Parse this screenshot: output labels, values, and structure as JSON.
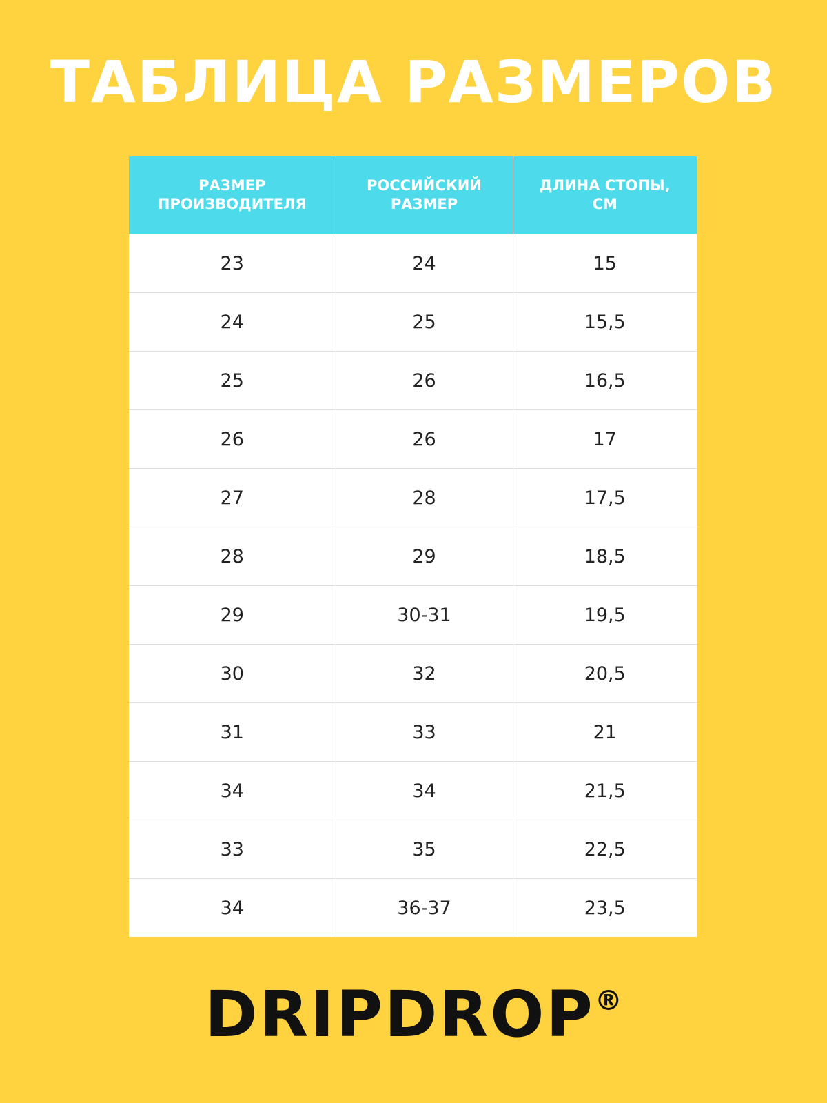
{
  "header": {
    "title": "ТАБЛИЦА РАЗМЕРОВ"
  },
  "table": {
    "columns": [
      "РАЗМЕР ПРОИЗВОДИТЕЛЯ",
      "РОССИЙСКИЙ РАЗМЕР",
      "ДЛИНА СТОПЫ, СМ"
    ],
    "rows": [
      [
        "23",
        "24",
        "15"
      ],
      [
        "24",
        "25",
        "15,5"
      ],
      [
        "25",
        "26",
        "16,5"
      ],
      [
        "26",
        "26",
        "17"
      ],
      [
        "27",
        "28",
        "17,5"
      ],
      [
        "28",
        "29",
        "18,5"
      ],
      [
        "29",
        "30-31",
        "19,5"
      ],
      [
        "30",
        "32",
        "20,5"
      ],
      [
        "31",
        "33",
        "21"
      ],
      [
        "34",
        "34",
        "21,5"
      ],
      [
        "33",
        "35",
        "22,5"
      ],
      [
        "34",
        "36-37",
        "23,5"
      ]
    ]
  },
  "logo": {
    "text": "DRIPDROP",
    "mark": "®"
  }
}
